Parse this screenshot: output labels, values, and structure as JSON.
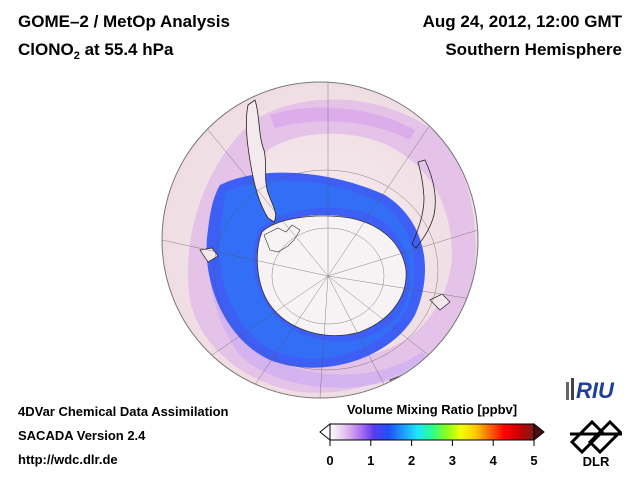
{
  "header": {
    "title_line1": "GOME–2 / MetOp Analysis",
    "species_prefix": "ClONO",
    "species_subscript": "2",
    "species_suffix": " at 55.4 hPa",
    "datetime": "Aug 24, 2012, 12:00 GMT",
    "region": "Southern Hemisphere"
  },
  "footer": {
    "line1": "4DVar Chemical Data Assimilation",
    "line2": "SACADA Version 2.4",
    "line3": "http://wdc.dlr.de"
  },
  "colorbar": {
    "title": "Volume Mixing Ratio [ppbv]",
    "ticks": [
      "0",
      "1",
      "2",
      "3",
      "4",
      "5"
    ],
    "colors": [
      "#ffffff",
      "#e6c3f0",
      "#b47cf0",
      "#5a3cf0",
      "#1e50ff",
      "#1e9bff",
      "#1ee6ff",
      "#28ff8c",
      "#8cff1e",
      "#f0ff00",
      "#ffc800",
      "#ff6400",
      "#ff0000",
      "#c80000",
      "#781e1e"
    ]
  },
  "logos": {
    "riu": "RIU",
    "dlr": "DLR"
  },
  "map": {
    "projection": "orthographic",
    "hemisphere": "Southern",
    "background_color": "#f3e6ea",
    "low_ring_color": "#5570f5",
    "high_band_color": "#e0b8f0",
    "ocean_color": "#f4e9ec"
  }
}
